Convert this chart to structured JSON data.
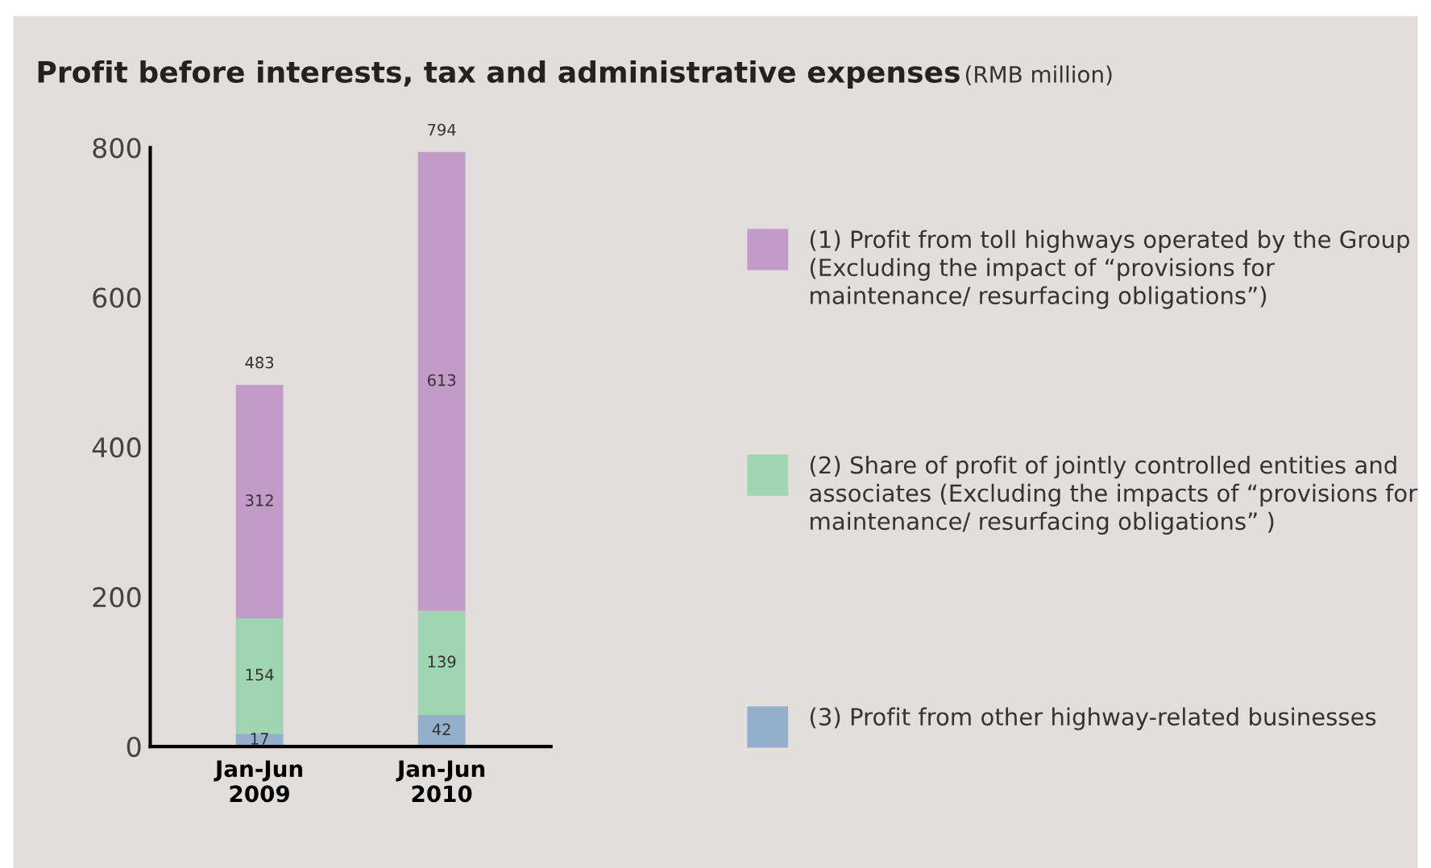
{
  "chart_data": {
    "type": "bar",
    "stacked": true,
    "title": "Profit before interests, tax and administrative expenses",
    "subtitle": "(RMB million)",
    "categories": [
      "Jan-Jun\n2009",
      "Jan-Jun\n2010"
    ],
    "series": [
      {
        "name": "(3) Profit from other highway-related businesses",
        "color": "#93afcb",
        "values": [
          17,
          42
        ]
      },
      {
        "name": "(2) Share of profit of jointly controlled entities and associates (Excluding the impacts of “provisions for maintenance/ resurfacing obligations” )",
        "color": "#9fd5b0",
        "values": [
          154,
          139
        ]
      },
      {
        "name": "(1) Profit from toll highways operated by the Group (Excluding the impact of “provisions for maintenance/ resurfacing obligations”)",
        "color": "#c39bc9",
        "values": [
          312,
          613
        ]
      }
    ],
    "data_labels": true,
    "totals": [
      "483",
      "794"
    ],
    "ylim": [
      0,
      800
    ],
    "yticks": [
      0,
      200,
      400,
      600,
      800
    ],
    "grid": false,
    "legend": "right"
  }
}
